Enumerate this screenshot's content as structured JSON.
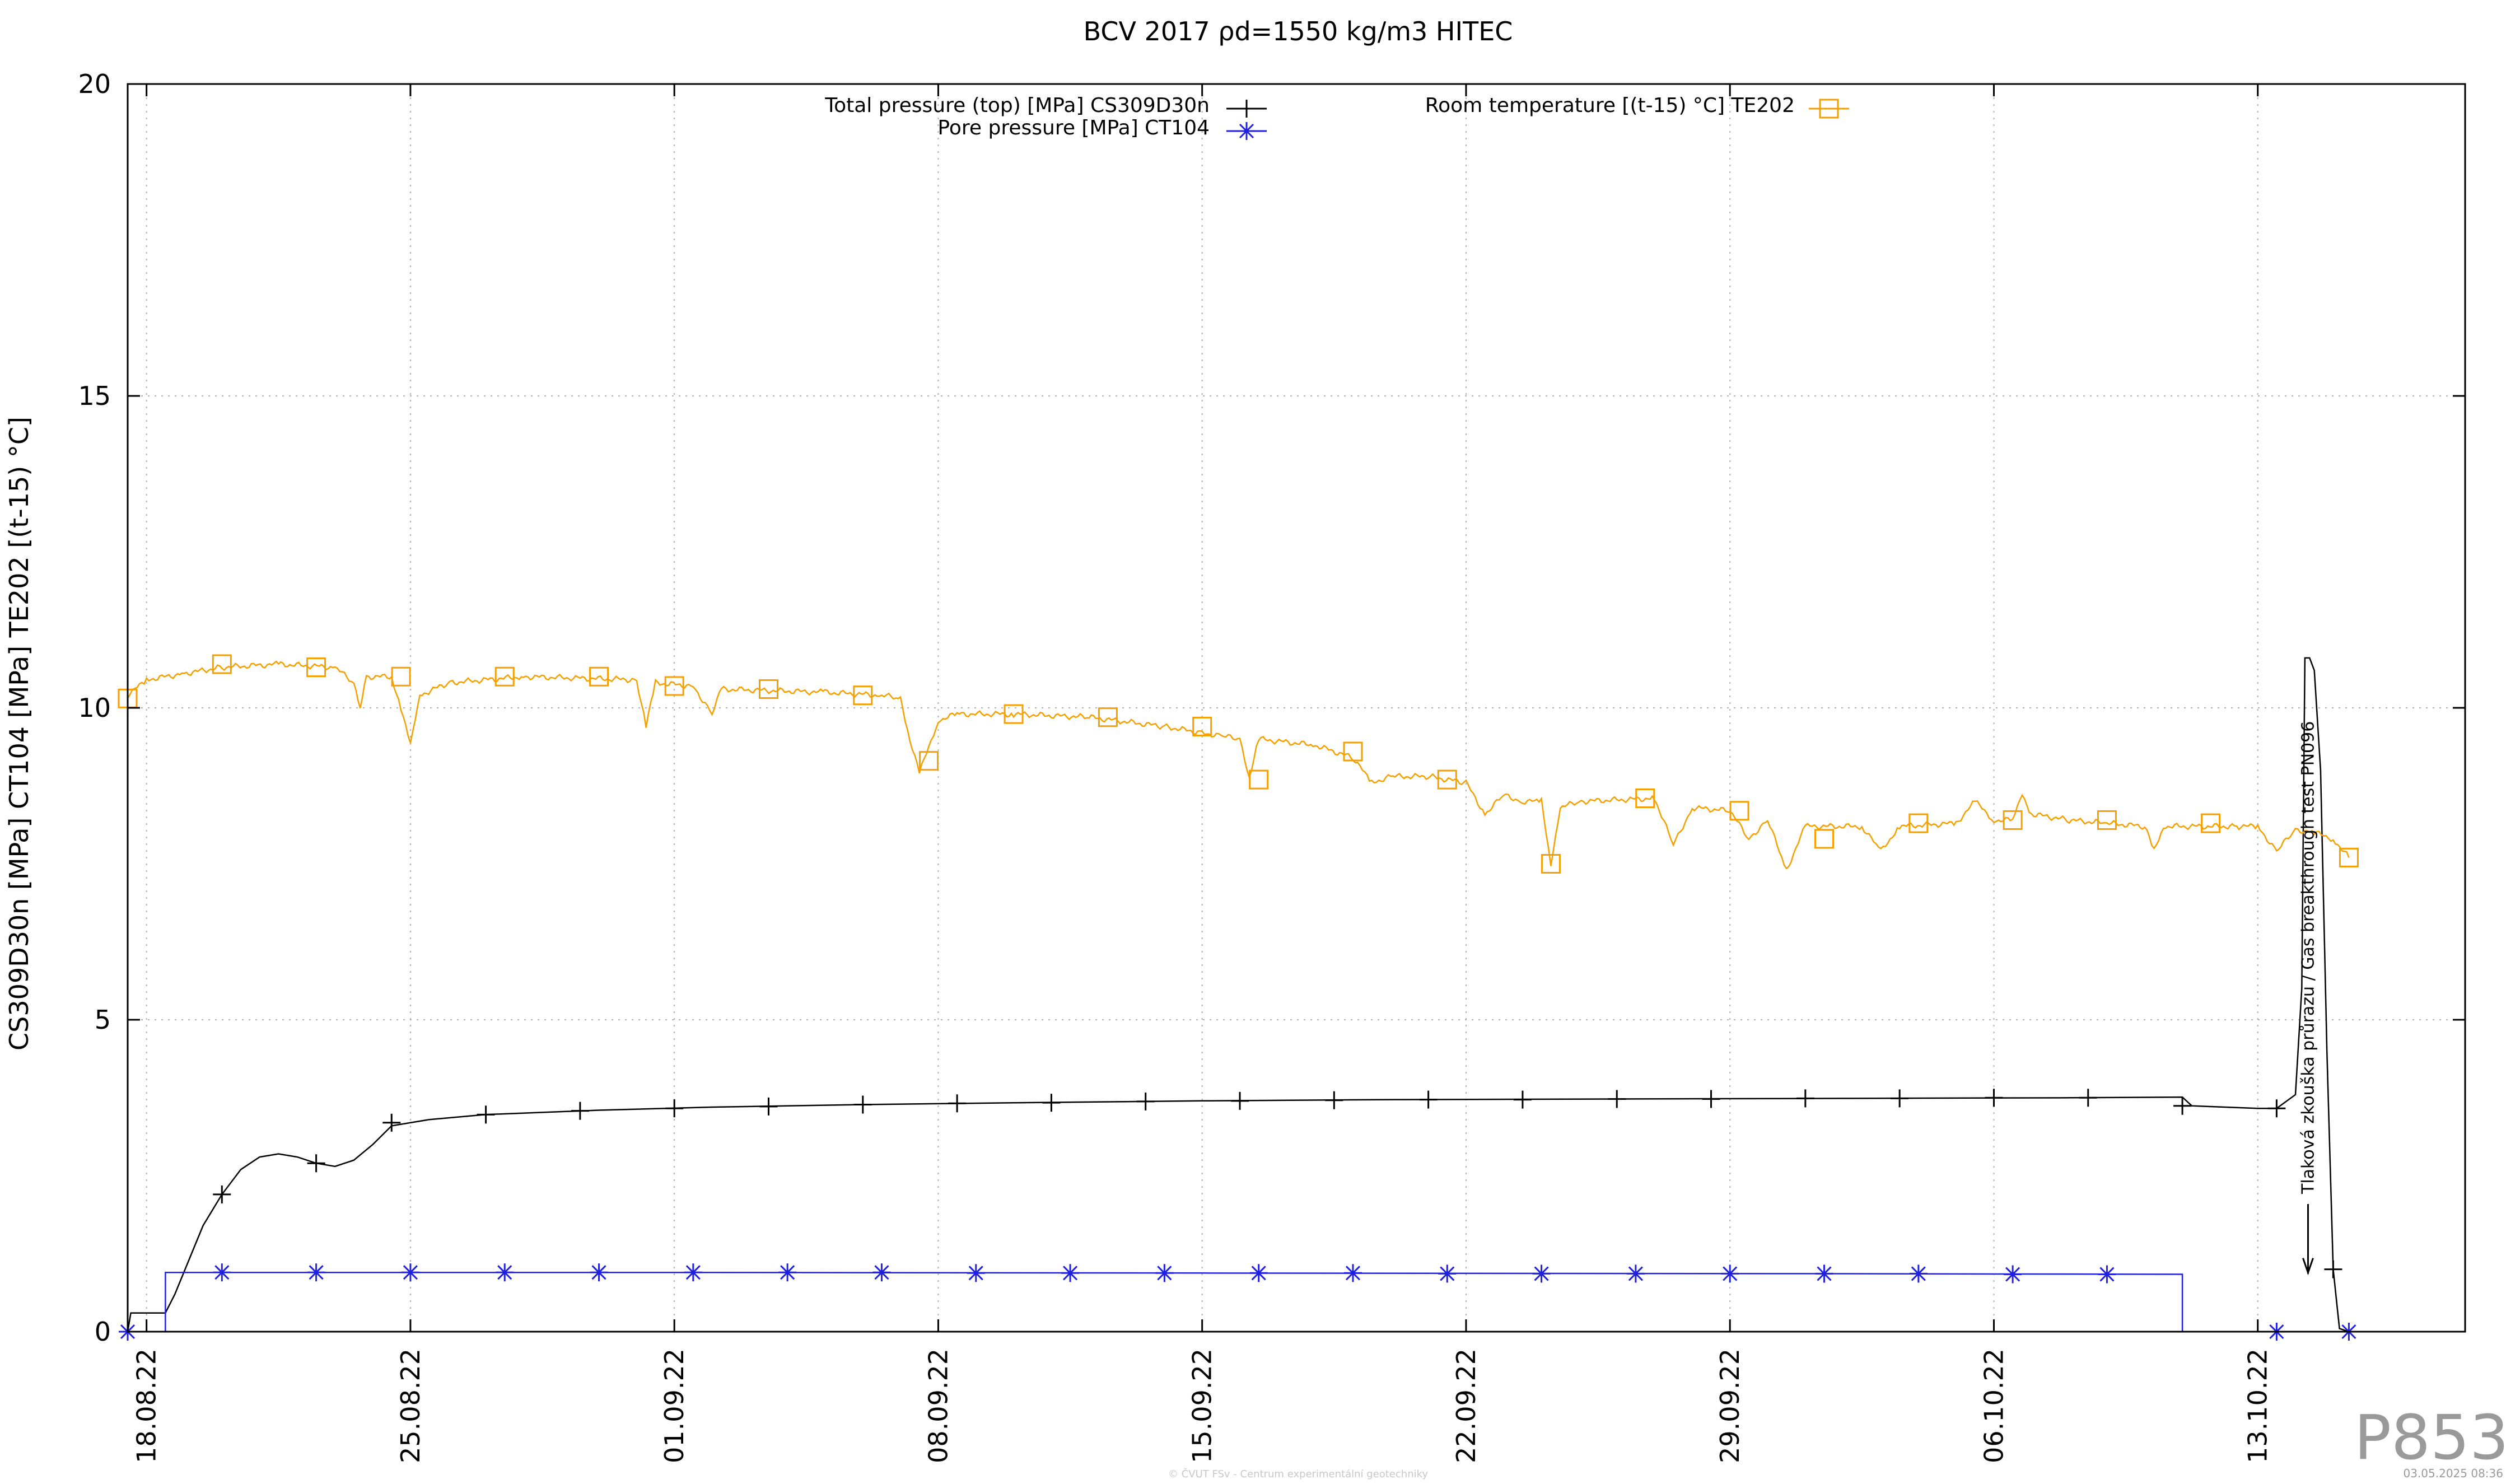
{
  "chart_data": {
    "type": "line",
    "title": "BCV 2017 ρd=1550 kg/m3 HITEC",
    "xlabel": "",
    "ylabel": "CS309D30n [MPa] CT104 [MPa] TE202 [(t-15) °C]",
    "x_axis_type": "date",
    "xlim": [
      "2022-08-17T12:00",
      "2022-10-18T12:00"
    ],
    "ylim": [
      0,
      20
    ],
    "y_ticks": [
      0,
      5,
      10,
      15,
      20
    ],
    "y_tick_labels": [
      "0",
      "5",
      "10",
      "15",
      "20"
    ],
    "x_ticks": [
      "2022-08-18",
      "2022-08-25",
      "2022-09-01",
      "2022-09-08",
      "2022-09-15",
      "2022-09-22",
      "2022-09-29",
      "2022-10-06",
      "2022-10-13"
    ],
    "x_tick_labels": [
      "18.08.22",
      "25.08.22",
      "01.09.22",
      "08.09.22",
      "15.09.22",
      "22.09.22",
      "29.09.22",
      "06.10.22",
      "13.10.22"
    ],
    "grid": true,
    "legend_position": "top",
    "series": [
      {
        "name": "Total pressure (top) [MPa] CS309D30n",
        "color": "#000000",
        "marker": "plus",
        "points": [
          [
            "2022-08-17T12:00",
            0.0
          ],
          [
            "2022-08-17T14:00",
            0.3
          ],
          [
            "2022-08-18T12:00",
            0.3
          ],
          [
            "2022-08-18T18:00",
            0.6
          ],
          [
            "2022-08-19T12:00",
            1.7
          ],
          [
            "2022-08-20T00:00",
            2.2
          ],
          [
            "2022-08-20T12:00",
            2.6
          ],
          [
            "2022-08-21T00:00",
            2.8
          ],
          [
            "2022-08-21T12:00",
            2.85
          ],
          [
            "2022-08-22T00:00",
            2.8
          ],
          [
            "2022-08-22T12:00",
            2.7
          ],
          [
            "2022-08-23T00:00",
            2.65
          ],
          [
            "2022-08-23T12:00",
            2.75
          ],
          [
            "2022-08-24T00:00",
            3.0
          ],
          [
            "2022-08-24T12:00",
            3.3
          ],
          [
            "2022-08-25T12:00",
            3.4
          ],
          [
            "2022-08-27T00:00",
            3.48
          ],
          [
            "2022-08-30T00:00",
            3.55
          ],
          [
            "2022-09-02T00:00",
            3.6
          ],
          [
            "2022-09-06T00:00",
            3.64
          ],
          [
            "2022-09-10T00:00",
            3.67
          ],
          [
            "2022-09-15T00:00",
            3.7
          ],
          [
            "2022-09-20T00:00",
            3.72
          ],
          [
            "2022-09-26T00:00",
            3.73
          ],
          [
            "2022-10-02T00:00",
            3.74
          ],
          [
            "2022-10-08T00:00",
            3.75
          ],
          [
            "2022-10-11T00:00",
            3.76
          ],
          [
            "2022-10-11T06:00",
            3.62
          ],
          [
            "2022-10-13T00:00",
            3.58
          ],
          [
            "2022-10-13T12:00",
            3.58
          ],
          [
            "2022-10-14T00:00",
            3.8
          ],
          [
            "2022-10-14T04:00",
            5.5
          ],
          [
            "2022-10-14T06:00",
            10.8
          ],
          [
            "2022-10-14T09:00",
            10.8
          ],
          [
            "2022-10-14T12:00",
            10.6
          ],
          [
            "2022-10-14T16:00",
            9.0
          ],
          [
            "2022-10-14T20:00",
            4.5
          ],
          [
            "2022-10-15T00:00",
            1.0
          ],
          [
            "2022-10-15T04:00",
            0.05
          ],
          [
            "2022-10-15T10:00",
            0.0
          ]
        ],
        "marker_points": [
          [
            "2022-08-20T00:00",
            2.2
          ],
          [
            "2022-08-22T12:00",
            2.7
          ],
          [
            "2022-08-24T12:00",
            3.35
          ],
          [
            "2022-08-27T00:00",
            3.48
          ],
          [
            "2022-08-29T12:00",
            3.54
          ],
          [
            "2022-09-01T00:00",
            3.58
          ],
          [
            "2022-09-03T12:00",
            3.61
          ],
          [
            "2022-09-06T00:00",
            3.64
          ],
          [
            "2022-09-08T12:00",
            3.66
          ],
          [
            "2022-09-11T00:00",
            3.67
          ],
          [
            "2022-09-13T12:00",
            3.69
          ],
          [
            "2022-09-16T00:00",
            3.7
          ],
          [
            "2022-09-18T12:00",
            3.71
          ],
          [
            "2022-09-21T00:00",
            3.72
          ],
          [
            "2022-09-23T12:00",
            3.72
          ],
          [
            "2022-09-26T00:00",
            3.73
          ],
          [
            "2022-09-28T12:00",
            3.73
          ],
          [
            "2022-10-01T00:00",
            3.74
          ],
          [
            "2022-10-03T12:00",
            3.74
          ],
          [
            "2022-10-06T00:00",
            3.75
          ],
          [
            "2022-10-08T12:00",
            3.75
          ],
          [
            "2022-10-11T00:00",
            3.62
          ],
          [
            "2022-10-13T12:00",
            3.58
          ],
          [
            "2022-10-15T00:00",
            1.0
          ]
        ]
      },
      {
        "name": "Pore pressure [MPa] CT104",
        "color": "#2020e0",
        "marker": "star",
        "points": [
          [
            "2022-08-17T12:00",
            0.0
          ],
          [
            "2022-08-18T12:00",
            0.0
          ],
          [
            "2022-08-18T12:01",
            0.95
          ],
          [
            "2022-09-01T00:00",
            0.95
          ],
          [
            "2022-09-15T00:00",
            0.94
          ],
          [
            "2022-10-01T00:00",
            0.93
          ],
          [
            "2022-10-11T00:00",
            0.92
          ],
          [
            "2022-10-11T00:01",
            0.0
          ],
          [
            "2022-10-15T10:00",
            0.0
          ]
        ],
        "marker_points": [
          [
            "2022-08-17T12:00",
            0.0
          ],
          [
            "2022-08-20T00:00",
            0.95
          ],
          [
            "2022-08-22T12:00",
            0.95
          ],
          [
            "2022-08-25T00:00",
            0.95
          ],
          [
            "2022-08-27T12:00",
            0.95
          ],
          [
            "2022-08-30T00:00",
            0.95
          ],
          [
            "2022-09-01T12:00",
            0.95
          ],
          [
            "2022-09-04T00:00",
            0.95
          ],
          [
            "2022-09-06T12:00",
            0.95
          ],
          [
            "2022-09-09T00:00",
            0.94
          ],
          [
            "2022-09-11T12:00",
            0.94
          ],
          [
            "2022-09-14T00:00",
            0.94
          ],
          [
            "2022-09-16T12:00",
            0.94
          ],
          [
            "2022-09-19T00:00",
            0.94
          ],
          [
            "2022-09-21T12:00",
            0.93
          ],
          [
            "2022-09-24T00:00",
            0.93
          ],
          [
            "2022-09-26T12:00",
            0.93
          ],
          [
            "2022-09-29T00:00",
            0.93
          ],
          [
            "2022-10-01T12:00",
            0.93
          ],
          [
            "2022-10-04T00:00",
            0.93
          ],
          [
            "2022-10-06T12:00",
            0.92
          ],
          [
            "2022-10-09T00:00",
            0.92
          ],
          [
            "2022-10-13T12:00",
            0.0
          ],
          [
            "2022-10-15T10:00",
            0.0
          ]
        ]
      },
      {
        "name": "Room temperature [(t-15) °C] TE202",
        "color": "#f5a000",
        "marker": "square",
        "points": [
          [
            "2022-08-17T12:00",
            10.2
          ],
          [
            "2022-08-18T00:00",
            10.45
          ],
          [
            "2022-08-19T00:00",
            10.55
          ],
          [
            "2022-08-20T00:00",
            10.65
          ],
          [
            "2022-08-21T12:00",
            10.7
          ],
          [
            "2022-08-23T00:00",
            10.65
          ],
          [
            "2022-08-23T12:00",
            10.4
          ],
          [
            "2022-08-23T16:00",
            10.0
          ],
          [
            "2022-08-23T20:00",
            10.5
          ],
          [
            "2022-08-24T12:00",
            10.5
          ],
          [
            "2022-08-24T18:00",
            10.0
          ],
          [
            "2022-08-25T00:00",
            9.4
          ],
          [
            "2022-08-25T06:00",
            10.2
          ],
          [
            "2022-08-26T00:00",
            10.4
          ],
          [
            "2022-08-28T00:00",
            10.5
          ],
          [
            "2022-08-31T00:00",
            10.45
          ],
          [
            "2022-08-31T06:00",
            9.7
          ],
          [
            "2022-08-31T12:00",
            10.4
          ],
          [
            "2022-09-01T12:00",
            10.35
          ],
          [
            "2022-09-02T00:00",
            9.9
          ],
          [
            "2022-09-02T06:00",
            10.3
          ],
          [
            "2022-09-05T00:00",
            10.25
          ],
          [
            "2022-09-06T12:00",
            10.2
          ],
          [
            "2022-09-07T00:00",
            10.15
          ],
          [
            "2022-09-07T06:00",
            9.5
          ],
          [
            "2022-09-07T12:00",
            8.95
          ],
          [
            "2022-09-08T00:00",
            9.8
          ],
          [
            "2022-09-08T12:00",
            9.9
          ],
          [
            "2022-09-10T00:00",
            9.9
          ],
          [
            "2022-09-12T00:00",
            9.85
          ],
          [
            "2022-09-14T00:00",
            9.7
          ],
          [
            "2022-09-15T00:00",
            9.6
          ],
          [
            "2022-09-15T12:00",
            9.55
          ],
          [
            "2022-09-16T00:00",
            9.5
          ],
          [
            "2022-09-16T06:00",
            8.9
          ],
          [
            "2022-09-16T12:00",
            9.5
          ],
          [
            "2022-09-18T00:00",
            9.4
          ],
          [
            "2022-09-19T00:00",
            9.2
          ],
          [
            "2022-09-19T12:00",
            8.8
          ],
          [
            "2022-09-20T00:00",
            8.9
          ],
          [
            "2022-09-21T00:00",
            8.9
          ],
          [
            "2022-09-22T00:00",
            8.8
          ],
          [
            "2022-09-22T12:00",
            8.3
          ],
          [
            "2022-09-23T00:00",
            8.6
          ],
          [
            "2022-09-23T12:00",
            8.5
          ],
          [
            "2022-09-24T00:00",
            8.5
          ],
          [
            "2022-09-24T06:00",
            7.5
          ],
          [
            "2022-09-24T12:00",
            8.4
          ],
          [
            "2022-09-25T00:00",
            8.5
          ],
          [
            "2022-09-27T00:00",
            8.55
          ],
          [
            "2022-09-27T12:00",
            7.8
          ],
          [
            "2022-09-28T00:00",
            8.4
          ],
          [
            "2022-09-29T00:00",
            8.35
          ],
          [
            "2022-09-29T12:00",
            7.9
          ],
          [
            "2022-09-30T00:00",
            8.2
          ],
          [
            "2022-09-30T12:00",
            7.4
          ],
          [
            "2022-10-01T00:00",
            8.1
          ],
          [
            "2022-10-02T12:00",
            8.1
          ],
          [
            "2022-10-03T00:00",
            7.7
          ],
          [
            "2022-10-03T12:00",
            8.1
          ],
          [
            "2022-10-05T00:00",
            8.15
          ],
          [
            "2022-10-05T12:00",
            8.5
          ],
          [
            "2022-10-06T00:00",
            8.2
          ],
          [
            "2022-10-06T12:00",
            8.2
          ],
          [
            "2022-10-06T18:00",
            8.6
          ],
          [
            "2022-10-07T00:00",
            8.3
          ],
          [
            "2022-10-08T00:00",
            8.2
          ],
          [
            "2022-10-09T00:00",
            8.15
          ],
          [
            "2022-10-10T00:00",
            8.1
          ],
          [
            "2022-10-10T06:00",
            7.7
          ],
          [
            "2022-10-10T12:00",
            8.1
          ],
          [
            "2022-10-12T12:00",
            8.1
          ],
          [
            "2022-10-13T00:00",
            8.1
          ],
          [
            "2022-10-13T12:00",
            7.7
          ],
          [
            "2022-10-14T00:00",
            8.05
          ],
          [
            "2022-10-14T12:00",
            8.0
          ],
          [
            "2022-10-15T00:00",
            7.9
          ],
          [
            "2022-10-15T10:00",
            7.6
          ]
        ],
        "marker_points": [
          [
            "2022-08-17T12:00",
            10.15
          ],
          [
            "2022-08-20T00:00",
            10.7
          ],
          [
            "2022-08-22T12:00",
            10.65
          ],
          [
            "2022-08-24T18:00",
            10.5
          ],
          [
            "2022-08-27T12:00",
            10.5
          ],
          [
            "2022-08-30T00:00",
            10.5
          ],
          [
            "2022-09-01T00:00",
            10.35
          ],
          [
            "2022-09-03T12:00",
            10.3
          ],
          [
            "2022-09-06T00:00",
            10.2
          ],
          [
            "2022-09-07T18:00",
            9.15
          ],
          [
            "2022-09-10T00:00",
            9.9
          ],
          [
            "2022-09-12T12:00",
            9.85
          ],
          [
            "2022-09-15T00:00",
            9.7
          ],
          [
            "2022-09-16T12:00",
            8.85
          ],
          [
            "2022-09-19T00:00",
            9.3
          ],
          [
            "2022-09-21T12:00",
            8.85
          ],
          [
            "2022-09-24T06:00",
            7.5
          ],
          [
            "2022-09-26T18:00",
            8.55
          ],
          [
            "2022-09-29T06:00",
            8.35
          ],
          [
            "2022-10-01T12:00",
            7.9
          ],
          [
            "2022-10-04T00:00",
            8.15
          ],
          [
            "2022-10-06T12:00",
            8.2
          ],
          [
            "2022-10-09T00:00",
            8.2
          ],
          [
            "2022-10-11T18:00",
            8.15
          ],
          [
            "2022-10-15T10:00",
            7.6
          ]
        ]
      }
    ],
    "annotations": [
      {
        "text": "Tlaková zkouška průrazu / Gas breakthrough test PN096",
        "x": "2022-10-14T08:00",
        "arrow_to": 1.0
      }
    ]
  },
  "footer": {
    "watermark": "P853",
    "credit": "© ČVUT FSv - Centrum experimentální geotechniky",
    "timestamp": "03.05.2025 08:36"
  }
}
